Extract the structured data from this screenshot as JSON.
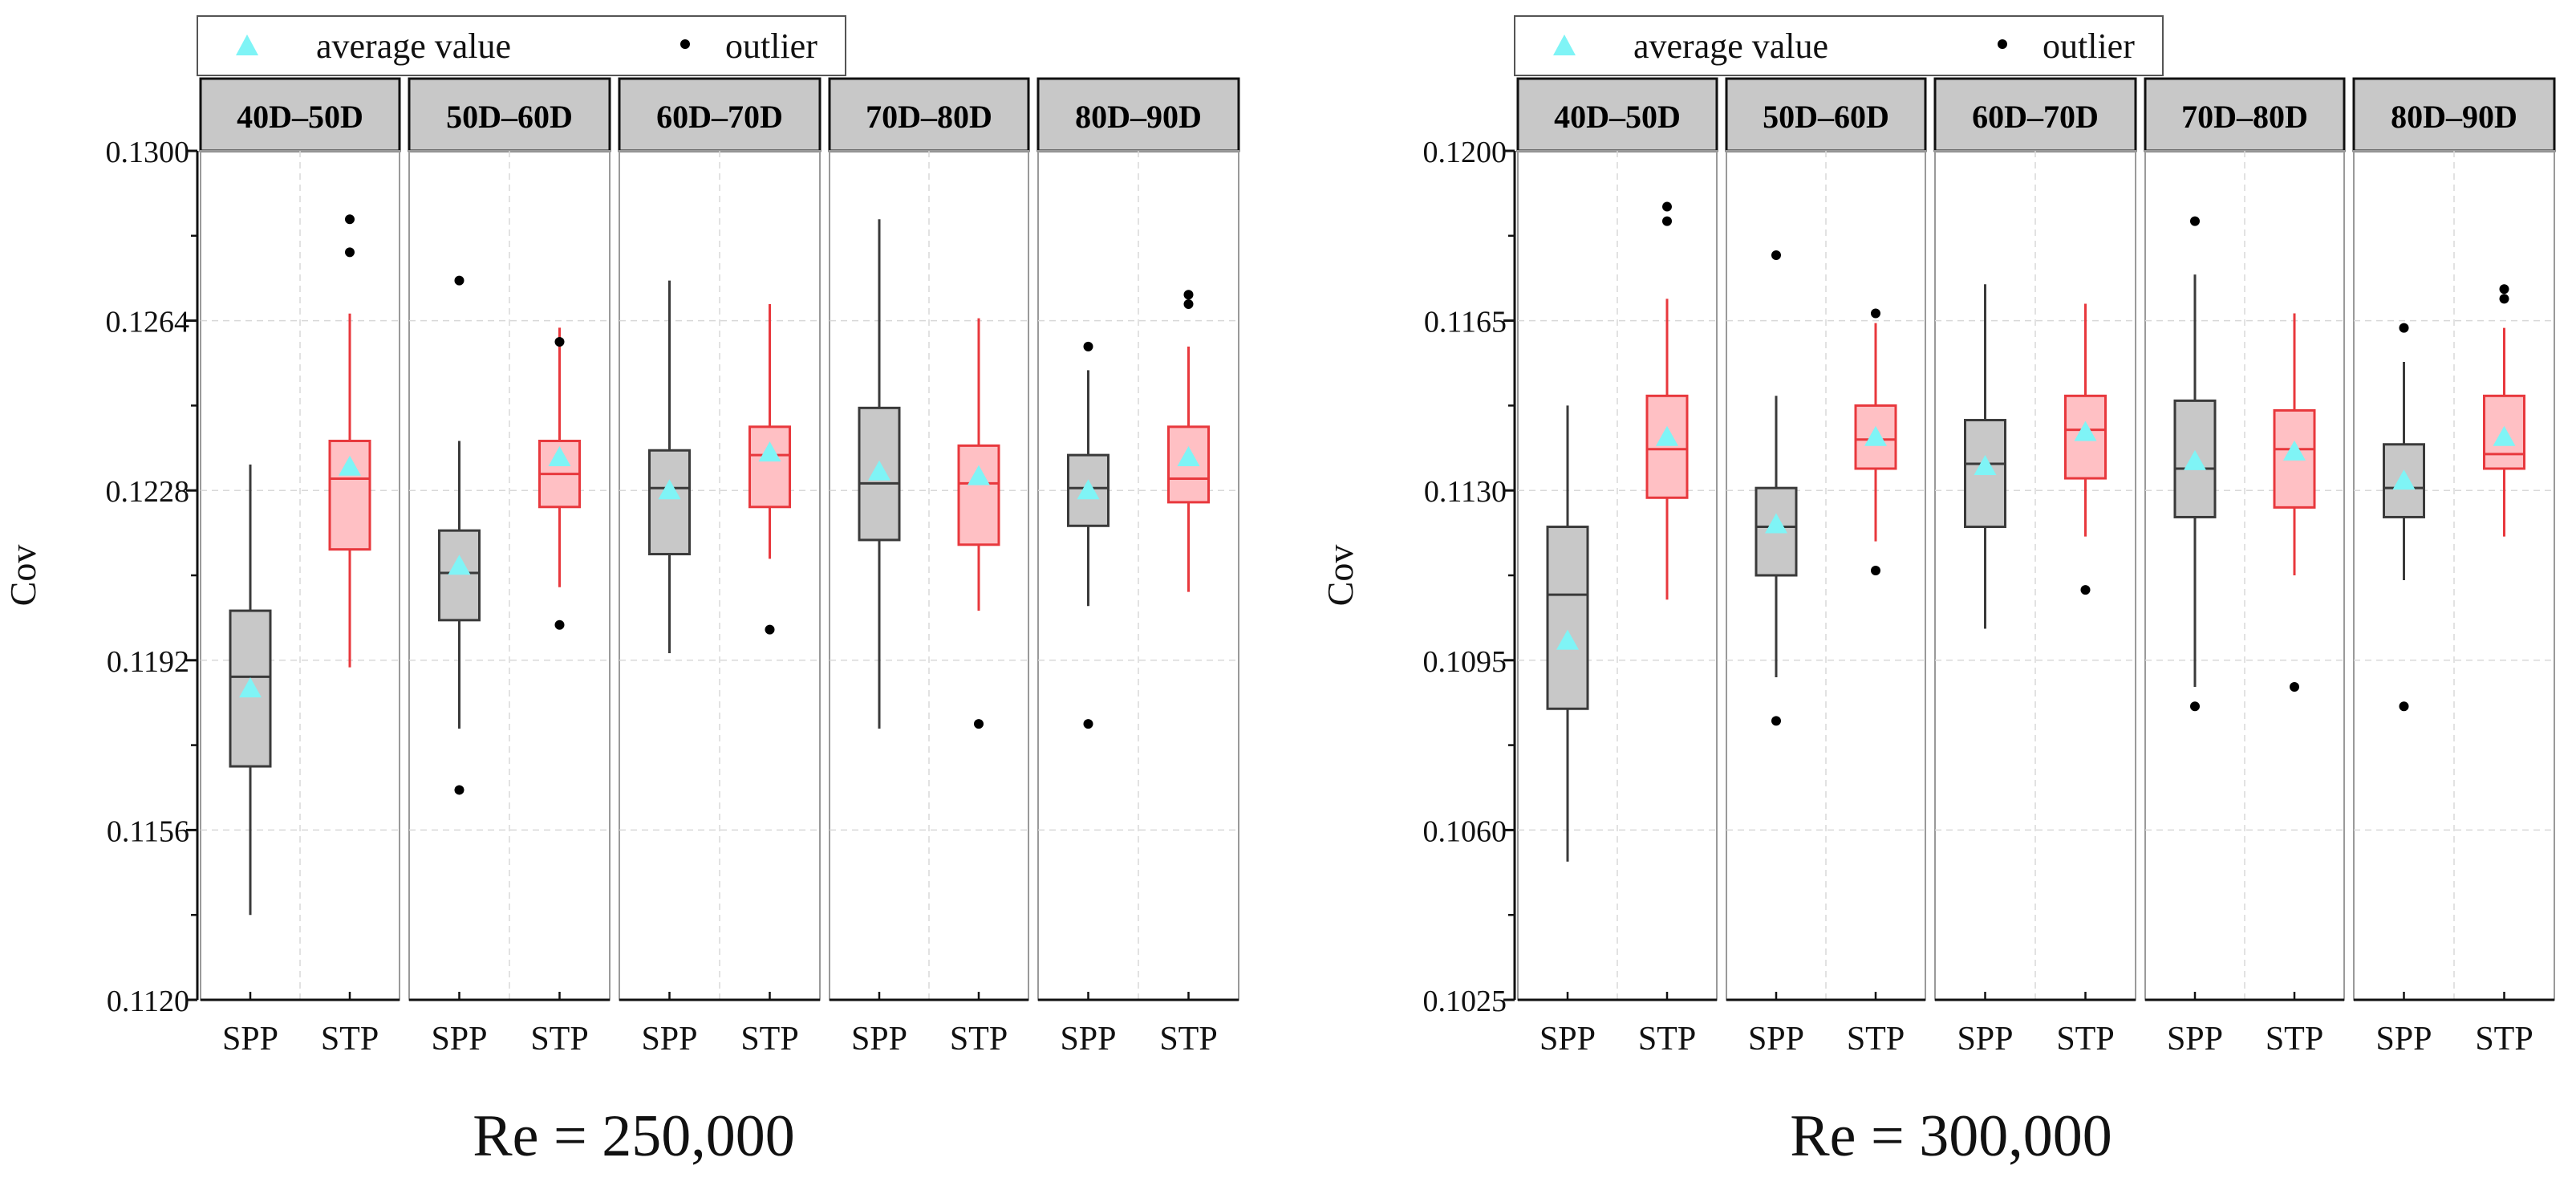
{
  "colors": {
    "spp_fill": "#c8c8c8",
    "spp_stroke": "#3a3a3a",
    "stp_fill": "#ffc0c4",
    "stp_stroke": "#e8383d",
    "mean_marker": "#7ff4f6",
    "outlier": "#000000",
    "strip_fill": "#c8c8c8",
    "grid": "#d8d8d8"
  },
  "legend": {
    "mean_label": "average  value",
    "outlier_label": "outlier"
  },
  "chart_data": [
    {
      "type": "box",
      "title": "Re = 250,000",
      "ylabel": "Cov",
      "ylim": [
        0.112,
        0.13
      ],
      "yticks": [
        "0.1120",
        "0.1156",
        "0.1192",
        "0.1228",
        "0.1264",
        "0.1300"
      ],
      "categories": [
        "SPP",
        "STP"
      ],
      "panels": [
        {
          "label": "40D–50D",
          "SPP": {
            "q1": 0.11695,
            "median": 0.11885,
            "q3": 0.12025,
            "whisker_low": 0.1138,
            "whisker_high": 0.12335,
            "mean": 0.1186,
            "outliers": []
          },
          "STP": {
            "q1": 0.12155,
            "median": 0.12305,
            "q3": 0.12385,
            "whisker_low": 0.11905,
            "whisker_high": 0.12655,
            "mean": 0.1233,
            "outliers": [
              0.12855,
              0.12785
            ]
          }
        },
        {
          "label": "50D–60D",
          "SPP": {
            "q1": 0.12005,
            "median": 0.12105,
            "q3": 0.12195,
            "whisker_low": 0.11775,
            "whisker_high": 0.12385,
            "mean": 0.1212,
            "outliers": [
              0.12725,
              0.11645
            ]
          },
          "STP": {
            "q1": 0.12245,
            "median": 0.12315,
            "q3": 0.12385,
            "whisker_low": 0.12075,
            "whisker_high": 0.12625,
            "mean": 0.1235,
            "outliers": [
              0.12595,
              0.11995
            ]
          }
        },
        {
          "label": "60D–70D",
          "SPP": {
            "q1": 0.12145,
            "median": 0.12285,
            "q3": 0.12365,
            "whisker_low": 0.11935,
            "whisker_high": 0.12725,
            "mean": 0.1228,
            "outliers": []
          },
          "STP": {
            "q1": 0.12245,
            "median": 0.12355,
            "q3": 0.12415,
            "whisker_low": 0.12135,
            "whisker_high": 0.12675,
            "mean": 0.1236,
            "outliers": [
              0.11985
            ]
          }
        },
        {
          "label": "70D–80D",
          "SPP": {
            "q1": 0.12175,
            "median": 0.12295,
            "q3": 0.12455,
            "whisker_low": 0.11775,
            "whisker_high": 0.12855,
            "mean": 0.1232,
            "outliers": []
          },
          "STP": {
            "q1": 0.12165,
            "median": 0.12295,
            "q3": 0.12375,
            "whisker_low": 0.12025,
            "whisker_high": 0.12645,
            "mean": 0.1231,
            "outliers": [
              0.11785
            ]
          }
        },
        {
          "label": "80D–90D",
          "SPP": {
            "q1": 0.12205,
            "median": 0.12285,
            "q3": 0.12355,
            "whisker_low": 0.12035,
            "whisker_high": 0.12535,
            "mean": 0.1228,
            "outliers": [
              0.12585,
              0.11785
            ]
          },
          "STP": {
            "q1": 0.12255,
            "median": 0.12305,
            "q3": 0.12415,
            "whisker_low": 0.12065,
            "whisker_high": 0.12585,
            "mean": 0.1235,
            "outliers": [
              0.12695,
              0.12675
            ]
          }
        }
      ]
    },
    {
      "type": "box",
      "title": "Re = 300,000",
      "ylabel": "Cov",
      "ylim": [
        0.1025,
        0.12
      ],
      "yticks": [
        "0.1025",
        "0.1060",
        "0.1095",
        "0.1130",
        "0.1165",
        "0.1200"
      ],
      "categories": [
        "SPP",
        "STP"
      ],
      "panels": [
        {
          "label": "40D–50D",
          "SPP": {
            "q1": 0.1085,
            "median": 0.11085,
            "q3": 0.11225,
            "whisker_low": 0.10535,
            "whisker_high": 0.11475,
            "mean": 0.1099,
            "outliers": []
          },
          "STP": {
            "q1": 0.11285,
            "median": 0.11385,
            "q3": 0.11495,
            "whisker_low": 0.11075,
            "whisker_high": 0.11695,
            "mean": 0.1141,
            "outliers": [
              0.11885,
              0.11855
            ]
          }
        },
        {
          "label": "50D–60D",
          "SPP": {
            "q1": 0.11125,
            "median": 0.11225,
            "q3": 0.11305,
            "whisker_low": 0.10915,
            "whisker_high": 0.11495,
            "mean": 0.1123,
            "outliers": [
              0.11785,
              0.10825
            ]
          },
          "STP": {
            "q1": 0.11345,
            "median": 0.11405,
            "q3": 0.11475,
            "whisker_low": 0.11195,
            "whisker_high": 0.11645,
            "mean": 0.1141,
            "outliers": [
              0.11665,
              0.11135
            ]
          }
        },
        {
          "label": "60D–70D",
          "SPP": {
            "q1": 0.11225,
            "median": 0.11355,
            "q3": 0.11445,
            "whisker_low": 0.11015,
            "whisker_high": 0.11725,
            "mean": 0.1135,
            "outliers": []
          },
          "STP": {
            "q1": 0.11325,
            "median": 0.11425,
            "q3": 0.11495,
            "whisker_low": 0.11205,
            "whisker_high": 0.11685,
            "mean": 0.1142,
            "outliers": [
              0.11095
            ]
          }
        },
        {
          "label": "70D–80D",
          "SPP": {
            "q1": 0.11245,
            "median": 0.11345,
            "q3": 0.11485,
            "whisker_low": 0.10895,
            "whisker_high": 0.11745,
            "mean": 0.1136,
            "outliers": [
              0.11855,
              0.10855
            ]
          },
          "STP": {
            "q1": 0.11265,
            "median": 0.11385,
            "q3": 0.11465,
            "whisker_low": 0.11125,
            "whisker_high": 0.11665,
            "mean": 0.1138,
            "outliers": [
              0.10895
            ]
          }
        },
        {
          "label": "80D–90D",
          "SPP": {
            "q1": 0.11245,
            "median": 0.11305,
            "q3": 0.11395,
            "whisker_low": 0.11115,
            "whisker_high": 0.11565,
            "mean": 0.1132,
            "outliers": [
              0.11635,
              0.10855
            ]
          },
          "STP": {
            "q1": 0.11345,
            "median": 0.11375,
            "q3": 0.11495,
            "whisker_low": 0.11205,
            "whisker_high": 0.11635,
            "mean": 0.1141,
            "outliers": [
              0.11715,
              0.11695
            ]
          }
        }
      ]
    }
  ]
}
